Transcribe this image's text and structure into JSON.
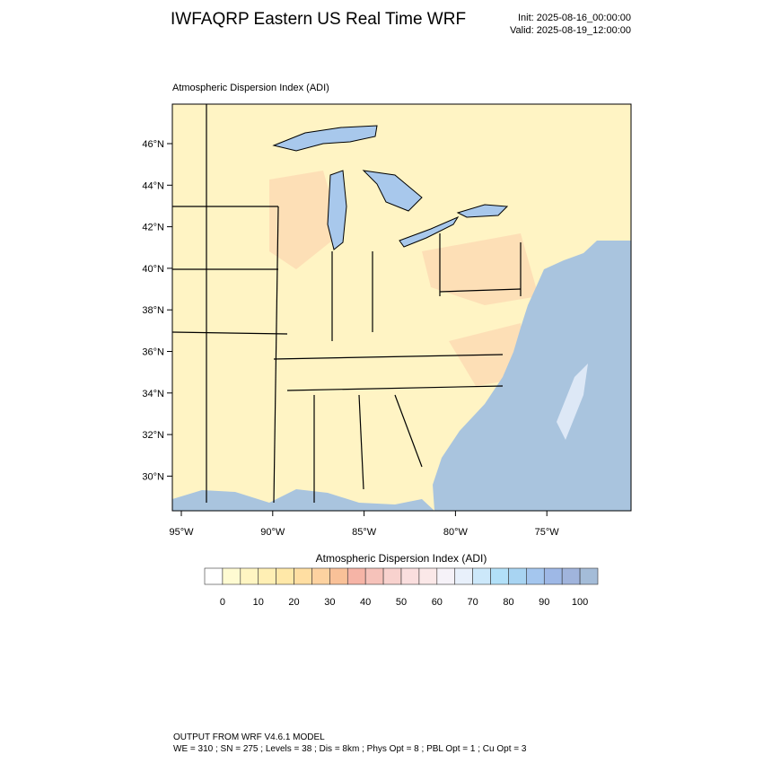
{
  "header": {
    "title": "IWFAQRP Eastern US Real Time WRF",
    "init": "Init: 2025-08-16_00:00:00",
    "valid": "Valid: 2025-08-19_12:00:00"
  },
  "map": {
    "label": "Atmospheric Dispersion Index   (ADI)",
    "lat_labels": [
      "46°N",
      "44°N",
      "42°N",
      "40°N",
      "38°N",
      "36°N",
      "34°N",
      "32°N",
      "30°N"
    ],
    "lon_labels": [
      "95°W",
      "90°W",
      "85°W",
      "80°W",
      "75°W"
    ]
  },
  "colorbar": {
    "title": "Atmospheric Dispersion Index  (ADI)",
    "ticks": [
      0,
      10,
      20,
      30,
      40,
      50,
      60,
      70,
      80,
      90,
      100
    ],
    "colors": [
      "#ffffff",
      "#fffbd2",
      "#fff5c2",
      "#ffefb4",
      "#ffe8a8",
      "#ffdea2",
      "#fdd2a0",
      "#f9c198",
      "#f6b4a6",
      "#f6c2ba",
      "#f8d2ce",
      "#fadede",
      "#fbe8e8",
      "#f6f2f8",
      "#e8f0fb",
      "#cce8fa",
      "#b2e0f8",
      "#a8d4f2",
      "#a4c6ee",
      "#9eb8e6",
      "#a0b4dc",
      "#a4bcd8"
    ]
  },
  "footer": {
    "line1": "OUTPUT FROM WRF V4.6.1 MODEL",
    "line2": "WE = 310 ; SN = 275 ; Levels = 38 ; Dis = 8km ; Phys Opt = 8 ; PBL Opt = 1 ; Cu Opt = 3"
  }
}
